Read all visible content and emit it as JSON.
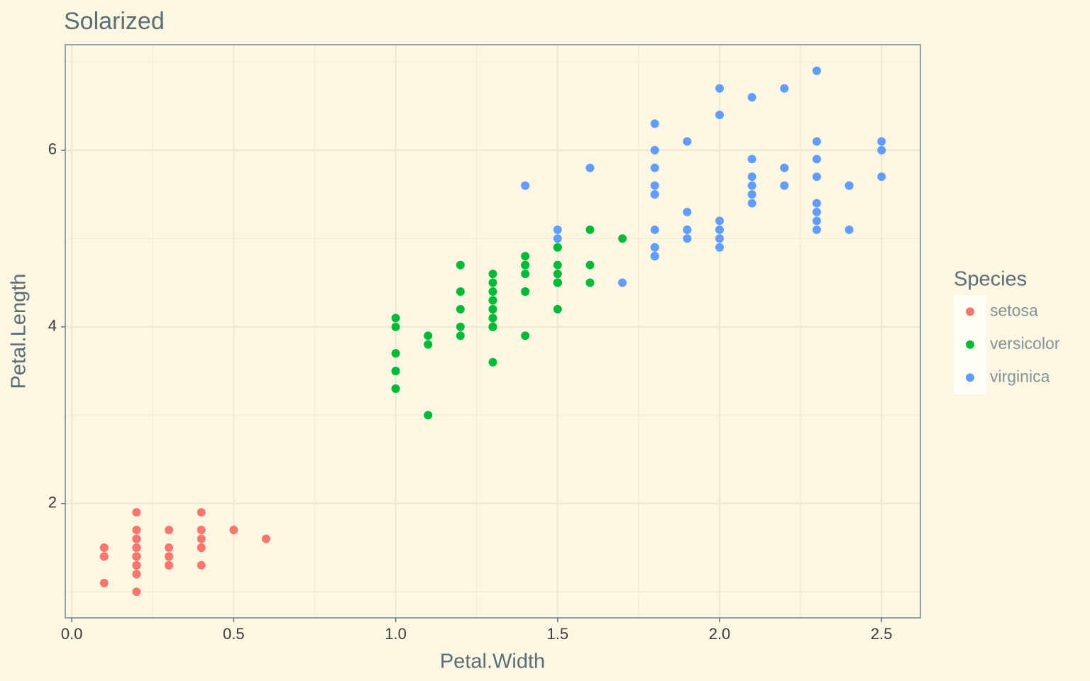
{
  "chart_data": {
    "type": "scatter",
    "title": "Solarized",
    "x_label": "Petal.Width",
    "y_label": "Petal.Length",
    "legend_title": "Species",
    "legend": "right",
    "grid": true,
    "xlim": [
      -0.02,
      2.62
    ],
    "ylim": [
      0.705,
      7.195
    ],
    "xticks": [
      {
        "value": 0,
        "label": "0.0"
      },
      0.5,
      {
        "value": 1,
        "label": "1.0"
      },
      1.5,
      {
        "value": 2,
        "label": "2.0"
      },
      2.5
    ],
    "yticks": [
      2,
      4,
      6
    ],
    "series": [
      {
        "name": "setosa",
        "color": "#F8766D",
        "x": [
          0.2,
          0.2,
          0.2,
          0.2,
          0.2,
          0.4,
          0.3,
          0.2,
          0.2,
          0.1,
          0.2,
          0.2,
          0.1,
          0.1,
          0.2,
          0.4,
          0.4,
          0.3,
          0.3,
          0.3,
          0.2,
          0.4,
          0.2,
          0.5,
          0.2,
          0.2,
          0.4,
          0.2,
          0.2,
          0.2,
          0.2,
          0.4,
          0.1,
          0.2,
          0.2,
          0.2,
          0.2,
          0.1,
          0.2,
          0.2,
          0.3,
          0.3,
          0.2,
          0.6,
          0.4,
          0.3,
          0.2,
          0.2,
          0.2,
          0.2
        ],
        "values": [
          1.4,
          1.4,
          1.3,
          1.5,
          1.4,
          1.7,
          1.4,
          1.5,
          1.4,
          1.5,
          1.5,
          1.6,
          1.4,
          1.1,
          1.2,
          1.5,
          1.3,
          1.4,
          1.7,
          1.5,
          1.7,
          1.5,
          1.0,
          1.7,
          1.9,
          1.6,
          1.6,
          1.5,
          1.4,
          1.6,
          1.6,
          1.5,
          1.5,
          1.4,
          1.5,
          1.2,
          1.3,
          1.4,
          1.3,
          1.5,
          1.3,
          1.3,
          1.3,
          1.6,
          1.9,
          1.4,
          1.6,
          1.4,
          1.5,
          1.4
        ]
      },
      {
        "name": "versicolor",
        "color": "#00BA38",
        "x": [
          1.4,
          1.5,
          1.5,
          1.3,
          1.5,
          1.3,
          1.6,
          1.0,
          1.3,
          1.4,
          1.0,
          1.5,
          1.0,
          1.4,
          1.3,
          1.4,
          1.5,
          1.0,
          1.5,
          1.1,
          1.8,
          1.3,
          1.5,
          1.2,
          1.3,
          1.4,
          1.4,
          1.7,
          1.5,
          1.0,
          1.1,
          1.0,
          1.2,
          1.6,
          1.5,
          1.6,
          1.5,
          1.3,
          1.3,
          1.3,
          1.2,
          1.4,
          1.2,
          1.0,
          1.3,
          1.2,
          1.3,
          1.3,
          1.1,
          1.3
        ],
        "values": [
          4.7,
          4.5,
          4.9,
          4.0,
          4.6,
          4.5,
          4.7,
          3.3,
          4.6,
          3.9,
          3.5,
          4.2,
          4.0,
          4.7,
          3.6,
          4.4,
          4.5,
          4.1,
          4.5,
          3.9,
          4.8,
          4.0,
          4.9,
          4.7,
          4.3,
          4.4,
          4.8,
          5.0,
          4.5,
          3.5,
          3.8,
          3.7,
          3.9,
          5.1,
          4.5,
          4.5,
          4.7,
          4.4,
          4.1,
          4.0,
          4.4,
          4.6,
          4.0,
          3.3,
          4.2,
          4.2,
          4.2,
          4.3,
          3.0,
          4.1
        ]
      },
      {
        "name": "virginica",
        "color": "#619CFF",
        "x": [
          2.5,
          1.9,
          2.1,
          1.8,
          2.2,
          2.1,
          1.7,
          1.8,
          1.8,
          2.5,
          2.0,
          1.9,
          2.1,
          2.0,
          2.4,
          2.3,
          1.8,
          2.2,
          2.3,
          1.5,
          2.3,
          2.0,
          2.0,
          1.8,
          2.1,
          1.8,
          1.8,
          1.8,
          2.1,
          1.6,
          1.9,
          2.0,
          2.2,
          1.5,
          1.4,
          2.3,
          2.4,
          1.8,
          1.8,
          2.1,
          2.4,
          2.3,
          1.9,
          2.3,
          2.5,
          2.3,
          1.9,
          2.0,
          2.3,
          1.8
        ],
        "values": [
          6.0,
          5.1,
          5.9,
          5.6,
          5.8,
          6.6,
          4.5,
          6.3,
          5.8,
          6.1,
          5.1,
          5.3,
          5.5,
          5.0,
          5.1,
          5.3,
          5.5,
          6.7,
          6.9,
          5.0,
          5.7,
          4.9,
          6.7,
          4.9,
          5.7,
          6.0,
          4.8,
          4.9,
          5.6,
          5.8,
          6.1,
          6.4,
          5.6,
          5.1,
          5.6,
          6.1,
          5.6,
          5.5,
          4.8,
          5.4,
          5.6,
          5.1,
          5.1,
          5.9,
          5.7,
          5.2,
          5.0,
          5.2,
          5.4,
          5.1
        ]
      }
    ]
  }
}
